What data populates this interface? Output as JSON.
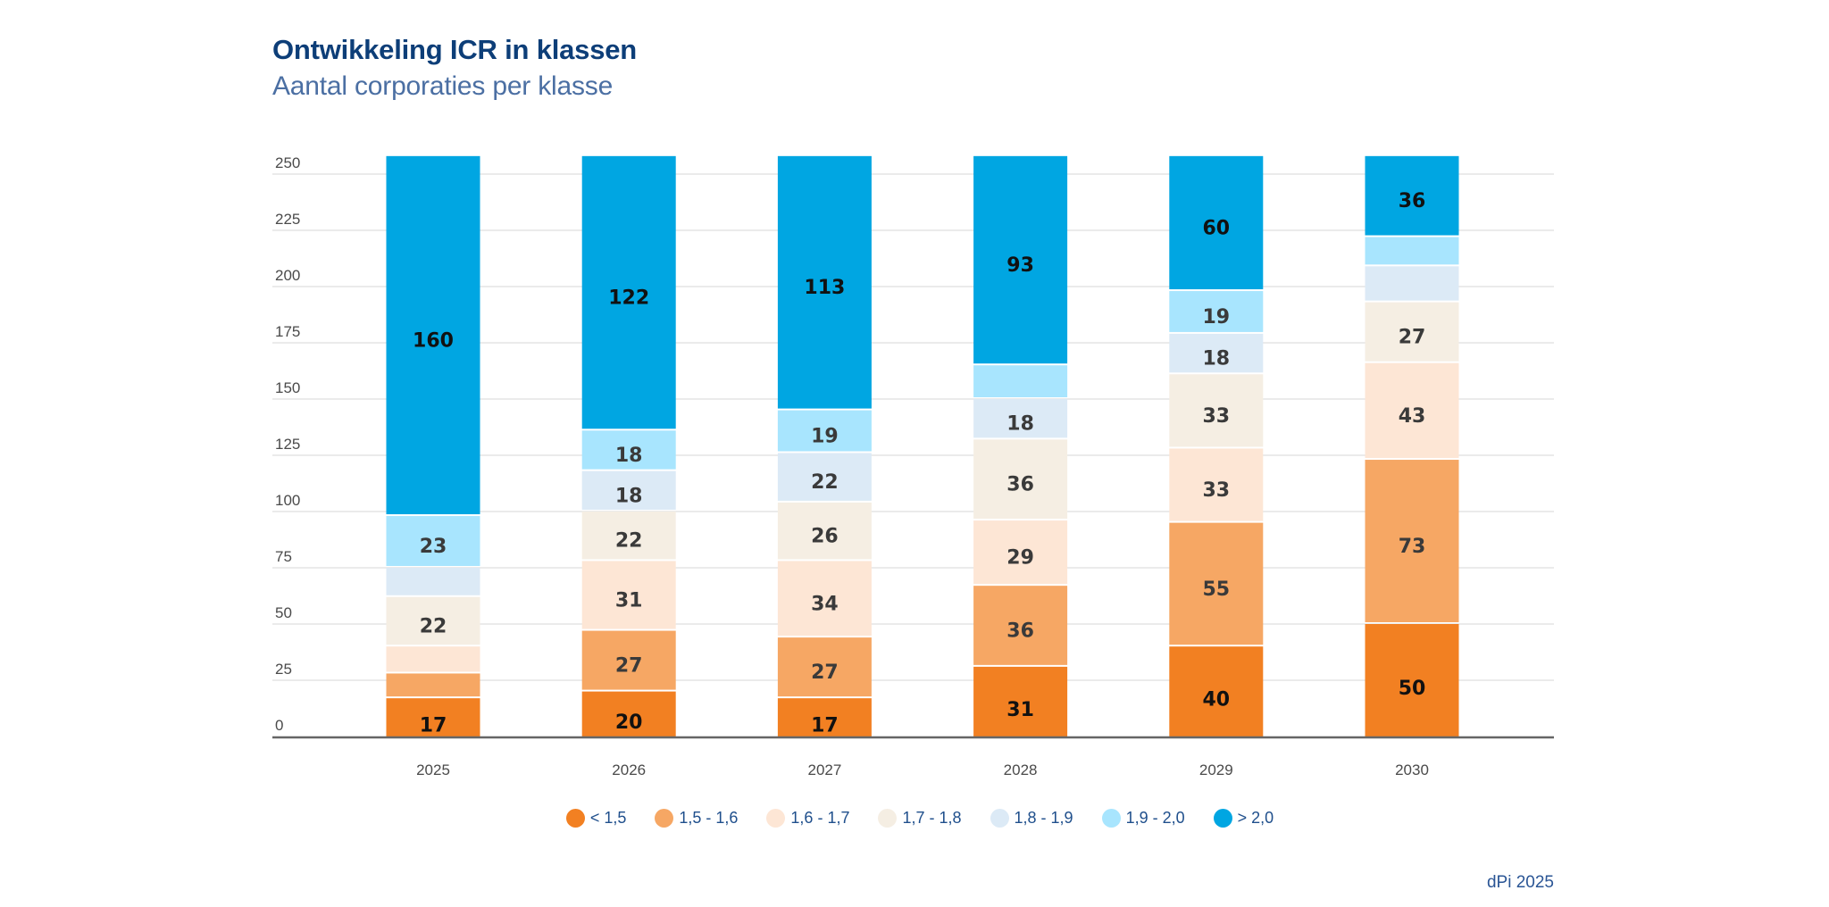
{
  "header": {
    "title": "Ontwikkeling ICR in klassen",
    "subtitle": "Aantal corporaties per klasse"
  },
  "footer": {
    "source": "dPi 2025"
  },
  "chart_data": {
    "type": "bar",
    "stacked": true,
    "title": "Ontwikkeling ICR in klassen",
    "subtitle": "Aantal corporaties per klasse",
    "xlabel": "",
    "ylabel": "",
    "ylim": [
      0,
      250
    ],
    "yticks": [
      0,
      25,
      50,
      75,
      100,
      125,
      150,
      175,
      200,
      225,
      250
    ],
    "grid": true,
    "legend_position": "bottom-center",
    "categories": [
      "2025",
      "2026",
      "2027",
      "2028",
      "2029",
      "2030"
    ],
    "series": [
      {
        "name": "< 1,5",
        "color": "#F28022",
        "label_color": "#111111",
        "values": [
          17,
          20,
          17,
          31,
          40,
          50
        ],
        "labels": [
          "17",
          "20",
          "17",
          "31",
          "40",
          "50"
        ]
      },
      {
        "name": "1,5 - 1,6",
        "color": "#F6A764",
        "label_color": "#3a3a3a",
        "values": [
          11,
          27,
          27,
          36,
          55,
          73
        ],
        "labels": [
          "",
          "27",
          "27",
          "36",
          "55",
          "73"
        ]
      },
      {
        "name": "1,6 - 1,7",
        "color": "#FDE6D5",
        "label_color": "#3a3a3a",
        "values": [
          12,
          31,
          34,
          29,
          33,
          43
        ],
        "labels": [
          "",
          "31",
          "34",
          "29",
          "33",
          "43"
        ]
      },
      {
        "name": "1,7 - 1,8",
        "color": "#F5EEE3",
        "label_color": "#3a3a3a",
        "values": [
          22,
          22,
          26,
          36,
          33,
          27
        ],
        "labels": [
          "22",
          "22",
          "26",
          "36",
          "33",
          "27"
        ]
      },
      {
        "name": "1,8 - 1,9",
        "color": "#DCEAF6",
        "label_color": "#3a3a3a",
        "values": [
          13,
          18,
          22,
          18,
          18,
          16
        ],
        "labels": [
          "",
          "18",
          "22",
          "18",
          "18",
          ""
        ]
      },
      {
        "name": "1,9 - 2,0",
        "color": "#A8E5FE",
        "label_color": "#3a3a3a",
        "values": [
          23,
          18,
          19,
          15,
          19,
          13
        ],
        "labels": [
          "23",
          "18",
          "19",
          "",
          "19",
          ""
        ]
      },
      {
        "name": "> 2,0",
        "color": "#00A6E2",
        "label_color": "#111111",
        "values": [
          160,
          122,
          113,
          93,
          60,
          36
        ],
        "labels": [
          "160",
          "122",
          "113",
          "93",
          "60",
          "36"
        ]
      }
    ],
    "axis_color": "#666666",
    "grid_color": "#EBEBEB"
  }
}
